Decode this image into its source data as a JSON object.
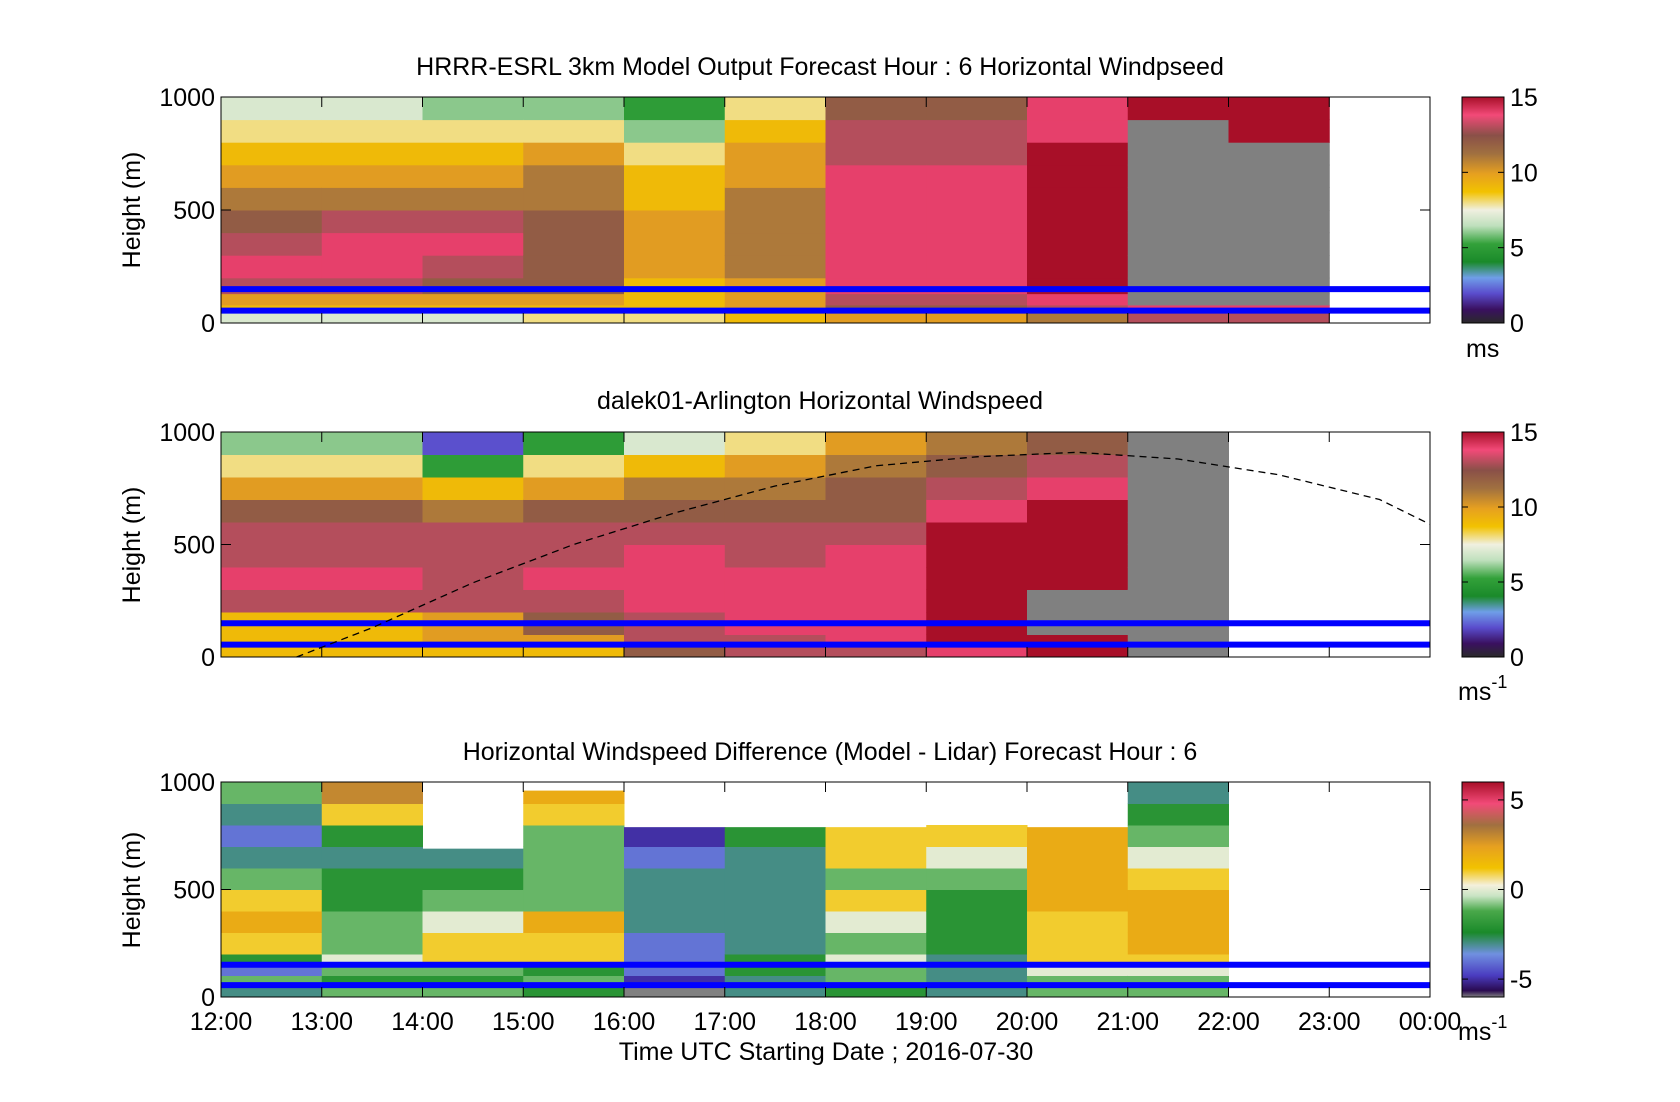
{
  "chart_data": [
    {
      "type": "heatmap",
      "title": "HRRR-ESRL 3km Model Output   Forecast Hour : 6 Horizontal Windpseed",
      "ylabel": "Height (m)",
      "ylim": [
        0,
        1000
      ],
      "yticks": [
        "0",
        "500",
        "1000"
      ],
      "x_start": "12:00",
      "x_end": "00:00",
      "colorbar": {
        "unit": "ms",
        "unit_sup": "",
        "min": 0,
        "max": 15,
        "ticks": [
          {
            "v": 0,
            "label": "0"
          },
          {
            "v": 5,
            "label": "5"
          },
          {
            "v": 10,
            "label": "10"
          },
          {
            "v": 15,
            "label": "15"
          }
        ]
      },
      "reference_lines_m": [
        150,
        55
      ],
      "heights_m": [
        0,
        50,
        80,
        130,
        200,
        300,
        400,
        500,
        600,
        700,
        800,
        900,
        1000
      ],
      "columns": [
        {
          "start": "12:00",
          "end": "13:00",
          "values": [
            7,
            9,
            10,
            13,
            14,
            13,
            12,
            11,
            10,
            9,
            8,
            7,
            5
          ]
        },
        {
          "start": "13:00",
          "end": "14:00",
          "values": [
            7,
            9,
            10,
            13,
            14,
            14,
            13,
            11,
            10,
            9,
            8,
            7,
            6
          ]
        },
        {
          "start": "14:00",
          "end": "15:00",
          "values": [
            7,
            9,
            10,
            12,
            13,
            14,
            13,
            11,
            10,
            9,
            8,
            6,
            5
          ]
        },
        {
          "start": "15:00",
          "end": "16:00",
          "values": [
            8,
            9,
            10,
            12,
            12,
            12,
            12,
            11,
            11,
            10,
            8,
            6,
            5
          ]
        },
        {
          "start": "16:00",
          "end": "17:00",
          "values": [
            8,
            9,
            9,
            9,
            10,
            10,
            10,
            9,
            9,
            8,
            6,
            5,
            4
          ]
        },
        {
          "start": "17:00",
          "end": "18:00",
          "values": [
            9,
            10,
            10,
            10,
            11,
            11,
            11,
            11,
            10,
            10,
            9,
            8,
            7
          ]
        },
        {
          "start": "18:00",
          "end": "19:00",
          "values": [
            10,
            12,
            13,
            14,
            14,
            14,
            14,
            14,
            14,
            13,
            13,
            12,
            12
          ]
        },
        {
          "start": "19:00",
          "end": "20:00",
          "values": [
            10,
            12,
            13,
            14,
            14,
            14,
            14,
            14,
            14,
            13,
            13,
            12,
            12
          ]
        },
        {
          "start": "20:00",
          "end": "21:00",
          "values": [
            11,
            13,
            14,
            15,
            15,
            15,
            15,
            15,
            15,
            15,
            14,
            14,
            13
          ]
        },
        {
          "start": "21:00",
          "end": "22:00",
          "values": [
            13,
            14,
            16,
            16,
            16,
            16,
            16,
            16,
            16,
            16,
            16,
            15,
            15
          ]
        },
        {
          "start": "22:00",
          "end": "23:00",
          "values": [
            13,
            14,
            16,
            16,
            16,
            16,
            16,
            16,
            16,
            16,
            15,
            15,
            15
          ]
        }
      ]
    },
    {
      "type": "heatmap",
      "title": "dalek01-Arlington  Horizontal Windspeed",
      "ylabel": "Height (m)",
      "ylim": [
        0,
        1000
      ],
      "yticks": [
        "0",
        "500",
        "1000"
      ],
      "x_start": "12:00",
      "x_end": "00:00",
      "colorbar": {
        "unit": "ms",
        "unit_sup": "-1",
        "min": 0,
        "max": 15,
        "ticks": [
          {
            "v": 0,
            "label": "0"
          },
          {
            "v": 5,
            "label": "5"
          },
          {
            "v": 10,
            "label": "10"
          },
          {
            "v": 15,
            "label": "15"
          }
        ]
      },
      "reference_lines_m": [
        150,
        55
      ],
      "dashed_curve": {
        "x": [
          "12:45",
          "13:30",
          "14:30",
          "15:30",
          "16:30",
          "17:30",
          "18:30",
          "19:30",
          "20:30",
          "21:30",
          "22:30",
          "23:30",
          "24:00"
        ],
        "y": [
          0,
          130,
          330,
          500,
          640,
          760,
          850,
          890,
          910,
          880,
          810,
          700,
          590
        ]
      },
      "heights_m": [
        0,
        50,
        100,
        200,
        300,
        400,
        500,
        600,
        700,
        800,
        900
      ],
      "columns": [
        {
          "start": "12:00",
          "end": "14:00",
          "values": [
            9,
            9,
            9,
            13,
            14,
            13,
            13,
            12,
            10,
            8,
            6
          ]
        },
        {
          "start": "14:00",
          "end": "15:00",
          "values": [
            9,
            10,
            10,
            13,
            13,
            13,
            13,
            11,
            9,
            5,
            2
          ]
        },
        {
          "start": "15:00",
          "end": "16:00",
          "values": [
            9,
            10,
            12,
            13,
            14,
            13,
            13,
            12,
            10,
            8,
            5
          ]
        },
        {
          "start": "16:00",
          "end": "17:00",
          "values": [
            12,
            13,
            13,
            14,
            14,
            14,
            13,
            12,
            11,
            9,
            7
          ]
        },
        {
          "start": "17:00",
          "end": "18:00",
          "values": [
            13,
            13,
            14,
            14,
            14,
            13,
            13,
            12,
            11,
            10,
            8
          ]
        },
        {
          "start": "18:00",
          "end": "19:00",
          "values": [
            13,
            14,
            14,
            14,
            14,
            14,
            13,
            12,
            12,
            11,
            10
          ]
        },
        {
          "start": "19:00",
          "end": "20:00",
          "values": [
            14,
            15,
            15,
            15,
            15,
            15,
            15,
            14,
            13,
            12,
            11
          ]
        },
        {
          "start": "20:00",
          "end": "21:00",
          "values": [
            15,
            15,
            16,
            16,
            15,
            15,
            15,
            15,
            14,
            13,
            12
          ]
        },
        {
          "start": "21:00",
          "end": "22:00",
          "values": [
            16,
            16,
            16,
            16,
            16,
            16,
            16,
            16,
            16,
            16,
            16
          ]
        }
      ]
    },
    {
      "type": "heatmap",
      "title": "Horizontal Windspeed Difference (Model - Lidar) Forecast Hour : 6",
      "xlabel": "Time UTC  Starting Date ; 2016-07-30",
      "ylabel": "Height (m)",
      "ylim": [
        0,
        1000
      ],
      "yticks": [
        "0",
        "500",
        "1000"
      ],
      "xticks": [
        "12:00",
        "13:00",
        "14:00",
        "15:00",
        "16:00",
        "17:00",
        "18:00",
        "19:00",
        "20:00",
        "21:00",
        "22:00",
        "23:00",
        "00:00"
      ],
      "colorbar": {
        "unit": "ms",
        "unit_sup": "-1",
        "min": -6,
        "max": 6,
        "ticks": [
          {
            "v": -5,
            "label": "-5"
          },
          {
            "v": 0,
            "label": "0"
          },
          {
            "v": 5,
            "label": "5"
          }
        ]
      },
      "reference_lines_m": [
        150,
        55
      ],
      "heights_m": [
        0,
        50,
        100,
        150,
        200,
        300,
        400,
        500,
        600,
        700,
        800,
        900
      ],
      "columns": [
        {
          "start": "12:00",
          "end": "13:00",
          "top": 1000,
          "values": [
            -3,
            -1,
            -4,
            -2,
            1,
            2,
            1,
            -1,
            -3,
            -4,
            -3,
            -1
          ]
        },
        {
          "start": "13:00",
          "end": "14:00",
          "top": 1000,
          "values": [
            -1,
            -2,
            -1,
            0,
            -1,
            -1,
            -2,
            -2,
            -3,
            -2,
            1,
            3
          ]
        },
        {
          "start": "14:00",
          "end": "15:00",
          "top": 690,
          "values": [
            -1,
            -2,
            -1,
            1,
            1,
            0,
            -1,
            -2,
            -3,
            -3
          ]
        },
        {
          "start": "15:00",
          "end": "16:00",
          "top": 960,
          "values": [
            -2,
            -1,
            -2,
            1,
            1,
            2,
            -1,
            -1,
            -1,
            -1,
            1,
            2
          ]
        },
        {
          "start": "16:00",
          "end": "17:00",
          "top": 790,
          "values": [
            -6,
            -5,
            -4,
            -4,
            -4,
            -3,
            -3,
            -3,
            -4,
            -5,
            -5
          ]
        },
        {
          "start": "17:00",
          "end": "18:00",
          "top": 790,
          "values": [
            -3,
            -3,
            -2,
            -2,
            -3,
            -3,
            -3,
            -3,
            -3,
            -2,
            -2
          ]
        },
        {
          "start": "18:00",
          "end": "19:00",
          "top": 790,
          "values": [
            -2,
            -1,
            -1,
            0,
            -1,
            0,
            1,
            -1,
            1,
            1,
            2
          ]
        },
        {
          "start": "19:00",
          "end": "20:00",
          "top": 800,
          "values": [
            -3,
            -3,
            -3,
            -3,
            -2,
            -2,
            -2,
            -1,
            0,
            1,
            2
          ]
        },
        {
          "start": "20:00",
          "end": "21:00",
          "top": 790,
          "values": [
            -1,
            -1,
            0,
            1,
            1,
            1,
            2,
            2,
            2,
            2,
            1
          ]
        },
        {
          "start": "21:00",
          "end": "22:00",
          "top": 1000,
          "values": [
            -1,
            -1,
            0,
            1,
            2,
            2,
            2,
            1,
            0,
            -1,
            -2,
            -3
          ]
        }
      ]
    }
  ]
}
